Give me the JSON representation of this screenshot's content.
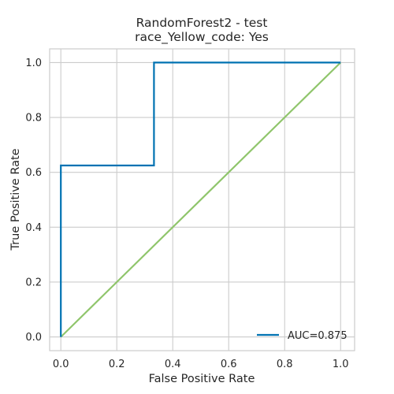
{
  "chart_data": {
    "type": "line",
    "title": "RandomForest2 - test",
    "subtitle": "race_Yellow_code: Yes",
    "xlabel": "False Positive Rate",
    "ylabel": "True Positive Rate",
    "xlim": [
      -0.04,
      1.05
    ],
    "ylim": [
      -0.05,
      1.05
    ],
    "x_ticks": [
      0.0,
      0.2,
      0.4,
      0.6,
      0.8,
      1.0
    ],
    "y_ticks": [
      0.0,
      0.2,
      0.4,
      0.6,
      0.8,
      1.0
    ],
    "x_tick_labels": [
      "0.0",
      "0.2",
      "0.4",
      "0.6",
      "0.8",
      "1.0"
    ],
    "y_tick_labels": [
      "0.0",
      "0.2",
      "0.4",
      "0.6",
      "0.8",
      "1.0"
    ],
    "grid": true,
    "legend_position": "lower-right",
    "series": [
      {
        "name": "AUC=0.875",
        "color": "#0072b2",
        "x": [
          0.0,
          0.0,
          0.333,
          0.333,
          1.0
        ],
        "y": [
          0.0,
          0.625,
          0.625,
          1.0,
          1.0
        ],
        "in_legend": true
      },
      {
        "color": "#8fc56b",
        "x": [
          0.0,
          1.0
        ],
        "y": [
          0.0,
          1.0
        ],
        "in_legend": false
      }
    ]
  }
}
